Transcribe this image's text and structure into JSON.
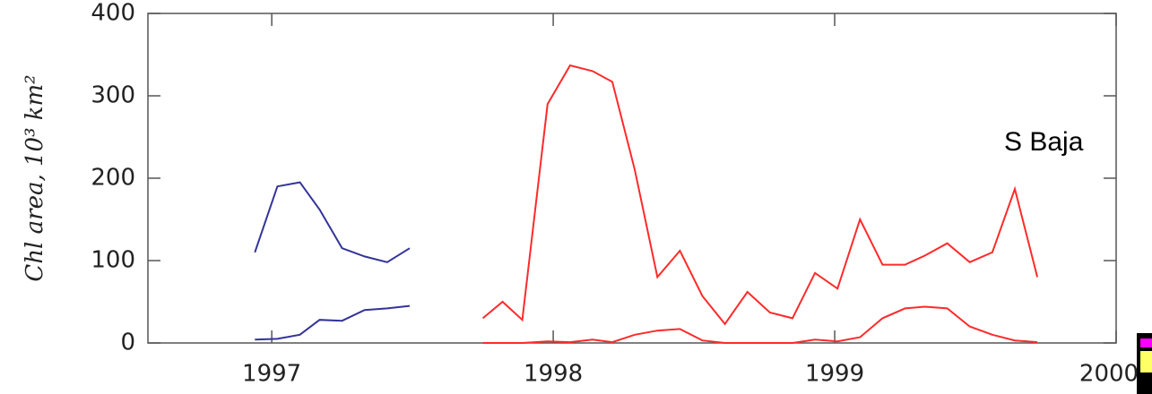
{
  "chart_data": {
    "type": "line",
    "y_label": "Chl area, 10³ km²",
    "annotation": "S Baja",
    "xlim": [
      1996.56,
      2000
    ],
    "xticks": [
      1997,
      1998,
      1999,
      2000
    ],
    "ylim": [
      0,
      400
    ],
    "yticks": [
      0,
      100,
      200,
      300,
      400
    ],
    "series": [
      {
        "color": "#333399",
        "x": [
          1996.94,
          1997.02,
          1997.1,
          1997.17,
          1997.25,
          1997.33,
          1997.41,
          1997.49
        ],
        "values": [
          110,
          190,
          195,
          162,
          115,
          105,
          98,
          115
        ]
      },
      {
        "color": "#333399",
        "x": [
          1996.94,
          1997.02,
          1997.1,
          1997.17,
          1997.25,
          1997.33,
          1997.41,
          1997.49
        ],
        "values": [
          4,
          5,
          10,
          28,
          27,
          40,
          42,
          45
        ]
      },
      {
        "color": "#ff2a2a",
        "x": [
          1997.75,
          1997.82,
          1997.89,
          1997.98,
          1998.06,
          1998.14,
          1998.21,
          1998.29,
          1998.37,
          1998.45,
          1998.53,
          1998.61,
          1998.69,
          1998.77,
          1998.85,
          1998.93,
          1999.01,
          1999.09,
          1999.17,
          1999.25,
          1999.32,
          1999.4,
          1999.48,
          1999.56,
          1999.64,
          1999.72
        ],
        "values": [
          30,
          50,
          28,
          290,
          337,
          330,
          317,
          210,
          80,
          112,
          57,
          23,
          62,
          37,
          30,
          85,
          66,
          150,
          95,
          95,
          106,
          121,
          98,
          110,
          187,
          80
        ]
      },
      {
        "color": "#ff2a2a",
        "x": [
          1997.75,
          1997.82,
          1997.89,
          1997.98,
          1998.06,
          1998.14,
          1998.21,
          1998.29,
          1998.37,
          1998.45,
          1998.53,
          1998.61,
          1998.69,
          1998.77,
          1998.85,
          1998.93,
          1999.01,
          1999.09,
          1999.17,
          1999.25,
          1999.32,
          1999.4,
          1999.48,
          1999.56,
          1999.64,
          1999.72
        ],
        "values": [
          0,
          0,
          0,
          2,
          1,
          4,
          1,
          10,
          15,
          17,
          3,
          0,
          0,
          0,
          0,
          4,
          2,
          7,
          30,
          42,
          44,
          42,
          20,
          10,
          3,
          1
        ]
      }
    ]
  }
}
